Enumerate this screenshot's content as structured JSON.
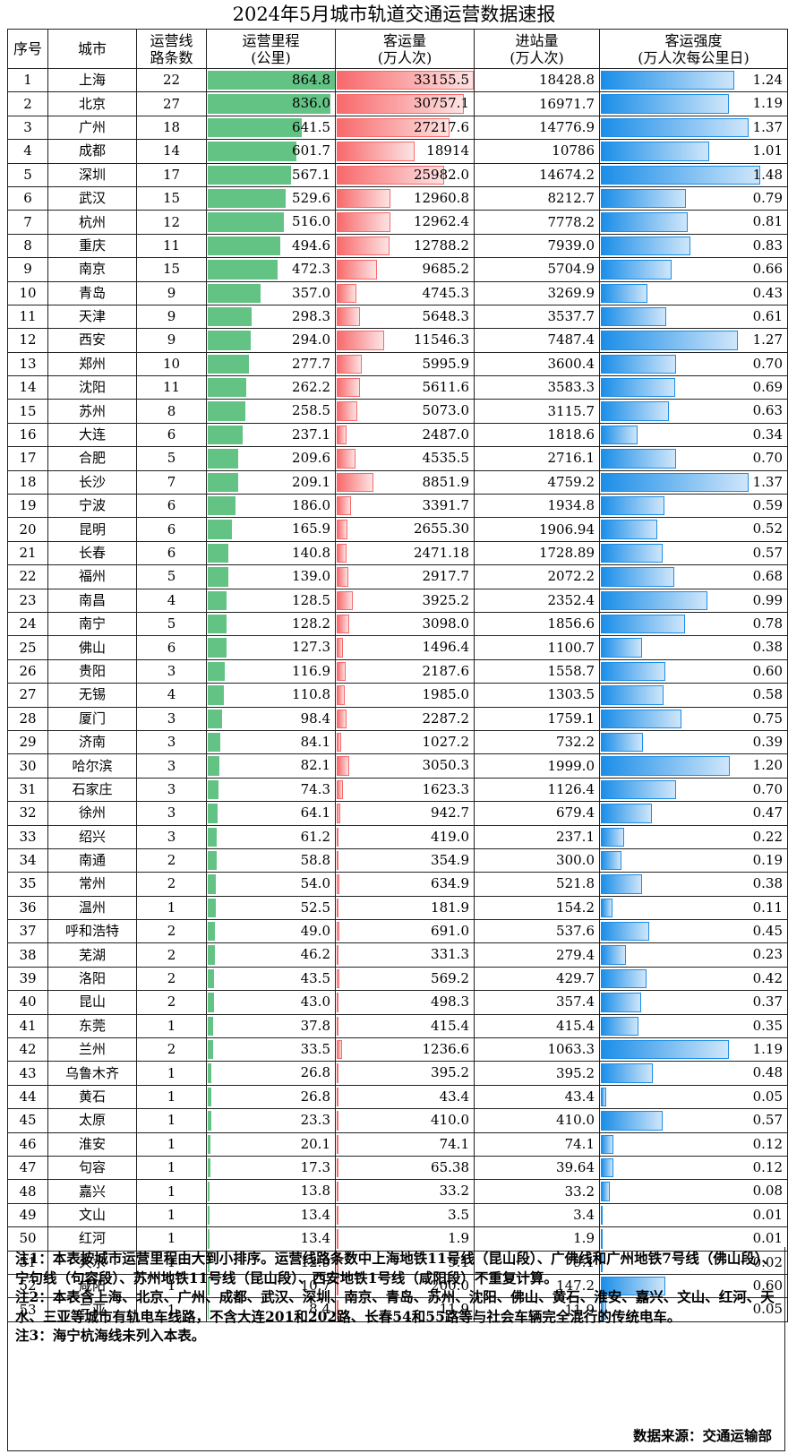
{
  "title": "2024年5月城市轨道交通运营数据速报",
  "headers": {
    "seq": "序号",
    "city": "城市",
    "lines": "运营线\n路条数",
    "mileage": "运营里程\n(公里)",
    "passengers": "客运量\n(万人次)",
    "entries": "进站量\n(万人次)",
    "intensity": "客运强度\n(万人次每公里日)"
  },
  "bar_colors": {
    "mileage": "#63c384",
    "passengers": "#f8696b",
    "intensity": "#1b8ee8"
  },
  "rows": [
    {
      "seq": "1",
      "city": "上海",
      "lines": "22",
      "mileage": "864.8",
      "passengers": "33155.5",
      "entries": "18428.8",
      "intensity": "1.24"
    },
    {
      "seq": "2",
      "city": "北京",
      "lines": "27",
      "mileage": "836.0",
      "passengers": "30757.1",
      "entries": "16971.7",
      "intensity": "1.19"
    },
    {
      "seq": "3",
      "city": "广州",
      "lines": "18",
      "mileage": "641.5",
      "passengers": "27217.6",
      "entries": "14776.9",
      "intensity": "1.37"
    },
    {
      "seq": "4",
      "city": "成都",
      "lines": "14",
      "mileage": "601.7",
      "passengers": "18914",
      "entries": "10786",
      "intensity": "1.01"
    },
    {
      "seq": "5",
      "city": "深圳",
      "lines": "17",
      "mileage": "567.1",
      "passengers": "25982.0",
      "entries": "14674.2",
      "intensity": "1.48"
    },
    {
      "seq": "6",
      "city": "武汉",
      "lines": "15",
      "mileage": "529.6",
      "passengers": "12960.8",
      "entries": "8212.7",
      "intensity": "0.79"
    },
    {
      "seq": "7",
      "city": "杭州",
      "lines": "12",
      "mileage": "516.0",
      "passengers": "12962.4",
      "entries": "7778.2",
      "intensity": "0.81"
    },
    {
      "seq": "8",
      "city": "重庆",
      "lines": "11",
      "mileage": "494.6",
      "passengers": "12788.2",
      "entries": "7939.0",
      "intensity": "0.83"
    },
    {
      "seq": "9",
      "city": "南京",
      "lines": "15",
      "mileage": "472.3",
      "passengers": "9685.2",
      "entries": "5704.9",
      "intensity": "0.66"
    },
    {
      "seq": "10",
      "city": "青岛",
      "lines": "9",
      "mileage": "357.0",
      "passengers": "4745.3",
      "entries": "3269.9",
      "intensity": "0.43"
    },
    {
      "seq": "11",
      "city": "天津",
      "lines": "9",
      "mileage": "298.3",
      "passengers": "5648.3",
      "entries": "3537.7",
      "intensity": "0.61"
    },
    {
      "seq": "12",
      "city": "西安",
      "lines": "9",
      "mileage": "294.0",
      "passengers": "11546.3",
      "entries": "7487.4",
      "intensity": "1.27"
    },
    {
      "seq": "13",
      "city": "郑州",
      "lines": "10",
      "mileage": "277.7",
      "passengers": "5995.9",
      "entries": "3600.4",
      "intensity": "0.70"
    },
    {
      "seq": "14",
      "city": "沈阳",
      "lines": "11",
      "mileage": "262.2",
      "passengers": "5611.6",
      "entries": "3583.3",
      "intensity": "0.69"
    },
    {
      "seq": "15",
      "city": "苏州",
      "lines": "8",
      "mileage": "258.5",
      "passengers": "5073.0",
      "entries": "3115.7",
      "intensity": "0.63"
    },
    {
      "seq": "16",
      "city": "大连",
      "lines": "6",
      "mileage": "237.1",
      "passengers": "2487.0",
      "entries": "1818.6",
      "intensity": "0.34"
    },
    {
      "seq": "17",
      "city": "合肥",
      "lines": "5",
      "mileage": "209.6",
      "passengers": "4535.5",
      "entries": "2716.1",
      "intensity": "0.70"
    },
    {
      "seq": "18",
      "city": "长沙",
      "lines": "7",
      "mileage": "209.1",
      "passengers": "8851.9",
      "entries": "4759.2",
      "intensity": "1.37"
    },
    {
      "seq": "19",
      "city": "宁波",
      "lines": "6",
      "mileage": "186.0",
      "passengers": "3391.7",
      "entries": "1934.8",
      "intensity": "0.59"
    },
    {
      "seq": "20",
      "city": "昆明",
      "lines": "6",
      "mileage": "165.9",
      "passengers": "2655.30",
      "entries": "1906.94",
      "intensity": "0.52"
    },
    {
      "seq": "21",
      "city": "长春",
      "lines": "6",
      "mileage": "140.8",
      "passengers": "2471.18",
      "entries": "1728.89",
      "intensity": "0.57"
    },
    {
      "seq": "22",
      "city": "福州",
      "lines": "5",
      "mileage": "139.0",
      "passengers": "2917.7",
      "entries": "2072.2",
      "intensity": "0.68"
    },
    {
      "seq": "23",
      "city": "南昌",
      "lines": "4",
      "mileage": "128.5",
      "passengers": "3925.2",
      "entries": "2352.4",
      "intensity": "0.99"
    },
    {
      "seq": "24",
      "city": "南宁",
      "lines": "5",
      "mileage": "128.2",
      "passengers": "3098.0",
      "entries": "1856.6",
      "intensity": "0.78"
    },
    {
      "seq": "25",
      "city": "佛山",
      "lines": "6",
      "mileage": "127.3",
      "passengers": "1496.4",
      "entries": "1100.7",
      "intensity": "0.38"
    },
    {
      "seq": "26",
      "city": "贵阳",
      "lines": "3",
      "mileage": "116.9",
      "passengers": "2187.6",
      "entries": "1558.7",
      "intensity": "0.60"
    },
    {
      "seq": "27",
      "city": "无锡",
      "lines": "4",
      "mileage": "110.8",
      "passengers": "1985.0",
      "entries": "1303.5",
      "intensity": "0.58"
    },
    {
      "seq": "28",
      "city": "厦门",
      "lines": "3",
      "mileage": "98.4",
      "passengers": "2287.2",
      "entries": "1759.1",
      "intensity": "0.75"
    },
    {
      "seq": "29",
      "city": "济南",
      "lines": "3",
      "mileage": "84.1",
      "passengers": "1027.2",
      "entries": "732.2",
      "intensity": "0.39"
    },
    {
      "seq": "30",
      "city": "哈尔滨",
      "lines": "3",
      "mileage": "82.1",
      "passengers": "3050.3",
      "entries": "1999.0",
      "intensity": "1.20"
    },
    {
      "seq": "31",
      "city": "石家庄",
      "lines": "3",
      "mileage": "74.3",
      "passengers": "1623.3",
      "entries": "1126.4",
      "intensity": "0.70"
    },
    {
      "seq": "32",
      "city": "徐州",
      "lines": "3",
      "mileage": "64.1",
      "passengers": "942.7",
      "entries": "679.4",
      "intensity": "0.47"
    },
    {
      "seq": "33",
      "city": "绍兴",
      "lines": "3",
      "mileage": "61.2",
      "passengers": "419.0",
      "entries": "237.1",
      "intensity": "0.22"
    },
    {
      "seq": "34",
      "city": "南通",
      "lines": "2",
      "mileage": "58.8",
      "passengers": "354.9",
      "entries": "300.0",
      "intensity": "0.19"
    },
    {
      "seq": "35",
      "city": "常州",
      "lines": "2",
      "mileage": "54.0",
      "passengers": "634.9",
      "entries": "521.8",
      "intensity": "0.38"
    },
    {
      "seq": "36",
      "city": "温州",
      "lines": "1",
      "mileage": "52.5",
      "passengers": "181.9",
      "entries": "154.2",
      "intensity": "0.11"
    },
    {
      "seq": "37",
      "city": "呼和浩特",
      "lines": "2",
      "mileage": "49.0",
      "passengers": "691.0",
      "entries": "537.6",
      "intensity": "0.45"
    },
    {
      "seq": "38",
      "city": "芜湖",
      "lines": "2",
      "mileage": "46.2",
      "passengers": "331.3",
      "entries": "279.4",
      "intensity": "0.23"
    },
    {
      "seq": "39",
      "city": "洛阳",
      "lines": "2",
      "mileage": "43.5",
      "passengers": "569.2",
      "entries": "429.7",
      "intensity": "0.42"
    },
    {
      "seq": "40",
      "city": "昆山",
      "lines": "2",
      "mileage": "43.0",
      "passengers": "498.3",
      "entries": "357.4",
      "intensity": "0.37"
    },
    {
      "seq": "41",
      "city": "东莞",
      "lines": "1",
      "mileage": "37.8",
      "passengers": "415.4",
      "entries": "415.4",
      "intensity": "0.35"
    },
    {
      "seq": "42",
      "city": "兰州",
      "lines": "2",
      "mileage": "33.5",
      "passengers": "1236.6",
      "entries": "1063.3",
      "intensity": "1.19"
    },
    {
      "seq": "43",
      "city": "乌鲁木齐",
      "lines": "1",
      "mileage": "26.8",
      "passengers": "395.2",
      "entries": "395.2",
      "intensity": "0.48"
    },
    {
      "seq": "44",
      "city": "黄石",
      "lines": "1",
      "mileage": "26.8",
      "passengers": "43.4",
      "entries": "43.4",
      "intensity": "0.05"
    },
    {
      "seq": "45",
      "city": "太原",
      "lines": "1",
      "mileage": "23.3",
      "passengers": "410.0",
      "entries": "410.0",
      "intensity": "0.57"
    },
    {
      "seq": "46",
      "city": "淮安",
      "lines": "1",
      "mileage": "20.1",
      "passengers": "74.1",
      "entries": "74.1",
      "intensity": "0.12"
    },
    {
      "seq": "47",
      "city": "句容",
      "lines": "1",
      "mileage": "17.3",
      "passengers": "65.38",
      "entries": "39.64",
      "intensity": "0.12"
    },
    {
      "seq": "48",
      "city": "嘉兴",
      "lines": "1",
      "mileage": "13.8",
      "passengers": "33.2",
      "entries": "33.2",
      "intensity": "0.08"
    },
    {
      "seq": "49",
      "city": "文山",
      "lines": "1",
      "mileage": "13.4",
      "passengers": "3.5",
      "entries": "3.4",
      "intensity": "0.01"
    },
    {
      "seq": "50",
      "city": "红河",
      "lines": "1",
      "mileage": "13.4",
      "passengers": "1.9",
      "entries": "1.9",
      "intensity": "0.01"
    },
    {
      "seq": "51",
      "city": "天水",
      "lines": "1",
      "mileage": "12.9",
      "passengers": "9.1",
      "entries": "9.1",
      "intensity": "0.02"
    },
    {
      "seq": "52",
      "city": "咸阳",
      "lines": "1",
      "mileage": "10.7",
      "passengers": "200.0",
      "entries": "147.2",
      "intensity": "0.60"
    },
    {
      "seq": "53",
      "city": "三亚",
      "lines": "1",
      "mileage": "8.4",
      "passengers": "11.9",
      "entries": "11.9",
      "intensity": "0.05"
    }
  ],
  "notes": [
    "注1：本表按城市运营里程由大到小排序。运营线路条数中上海地铁11号线（昆山段）、广佛线和广州地铁7号线（佛山段）、宁句线（句容段）、苏州地铁11号线（昆山段）、西安地铁1号线（咸阳段）不重复计算。",
    "注2：本表含上海、北京、广州、成都、武汉、深圳、南京、青岛、苏州、沈阳、佛山、黄石、淮安、嘉兴、文山、红河、天水、三亚等城市有轨电车线路，不含大连201和202路、长春54和55路等与社会车辆完全混行的传统电车。",
    "注3：海宁杭海线未列入本表。"
  ],
  "source": "数据来源：交通运输部"
}
